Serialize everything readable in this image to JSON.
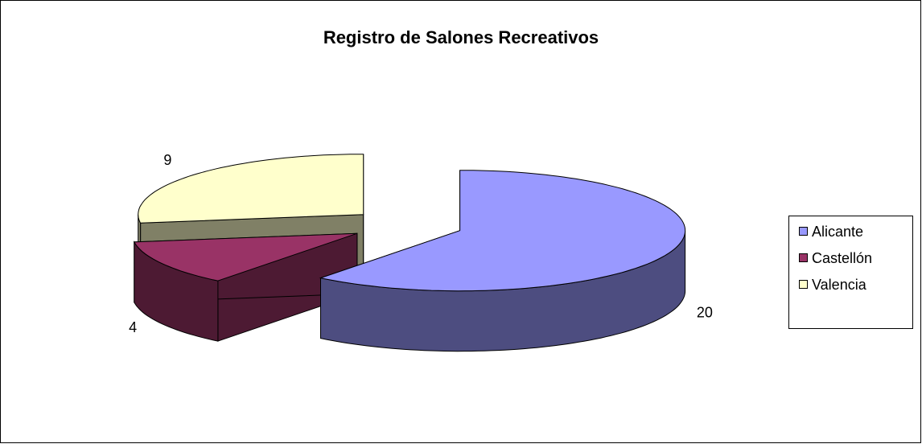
{
  "chart_data": {
    "type": "pie",
    "title": "Registro de Salones Recreativos",
    "categories": [
      "Alicante",
      "Castellón",
      "Valencia"
    ],
    "values": [
      20,
      4,
      9
    ],
    "colors": [
      "#9999ff",
      "#993366",
      "#ffffcc"
    ],
    "legend": "right"
  }
}
